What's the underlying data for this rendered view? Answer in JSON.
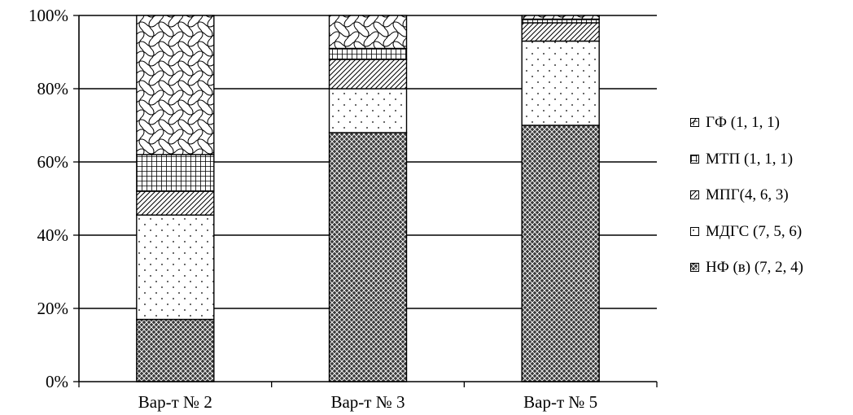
{
  "chart_data": {
    "type": "bar",
    "stacked": true,
    "categories": [
      "Вар-т № 2",
      "Вар-т № 3",
      "Вар-т № 5"
    ],
    "series": [
      {
        "name": "НФ (в) (7, 2, 4)",
        "pattern": "crosshatch-dark",
        "values": [
          17,
          68,
          70
        ]
      },
      {
        "name": "МДГС (7, 5, 6)",
        "pattern": "dots",
        "values": [
          28.5,
          12,
          23
        ]
      },
      {
        "name": "МПГ(4, 6, 3)",
        "pattern": "diagonal",
        "values": [
          6.5,
          8,
          5
        ]
      },
      {
        "name": "МТП (1, 1, 1)",
        "pattern": "grid",
        "values": [
          10,
          3,
          1
        ]
      },
      {
        "name": "ГФ (1, 1, 1)",
        "pattern": "wave",
        "values": [
          38,
          9,
          1
        ]
      }
    ],
    "yticks": [
      "0%",
      "20%",
      "40%",
      "60%",
      "80%",
      "100%"
    ],
    "ylim": [
      0,
      100
    ],
    "grid": true,
    "legend": "right",
    "legend_order": [
      4,
      3,
      2,
      1,
      0
    ],
    "colors": {
      "stroke": "#000000",
      "background": "#ffffff"
    }
  }
}
